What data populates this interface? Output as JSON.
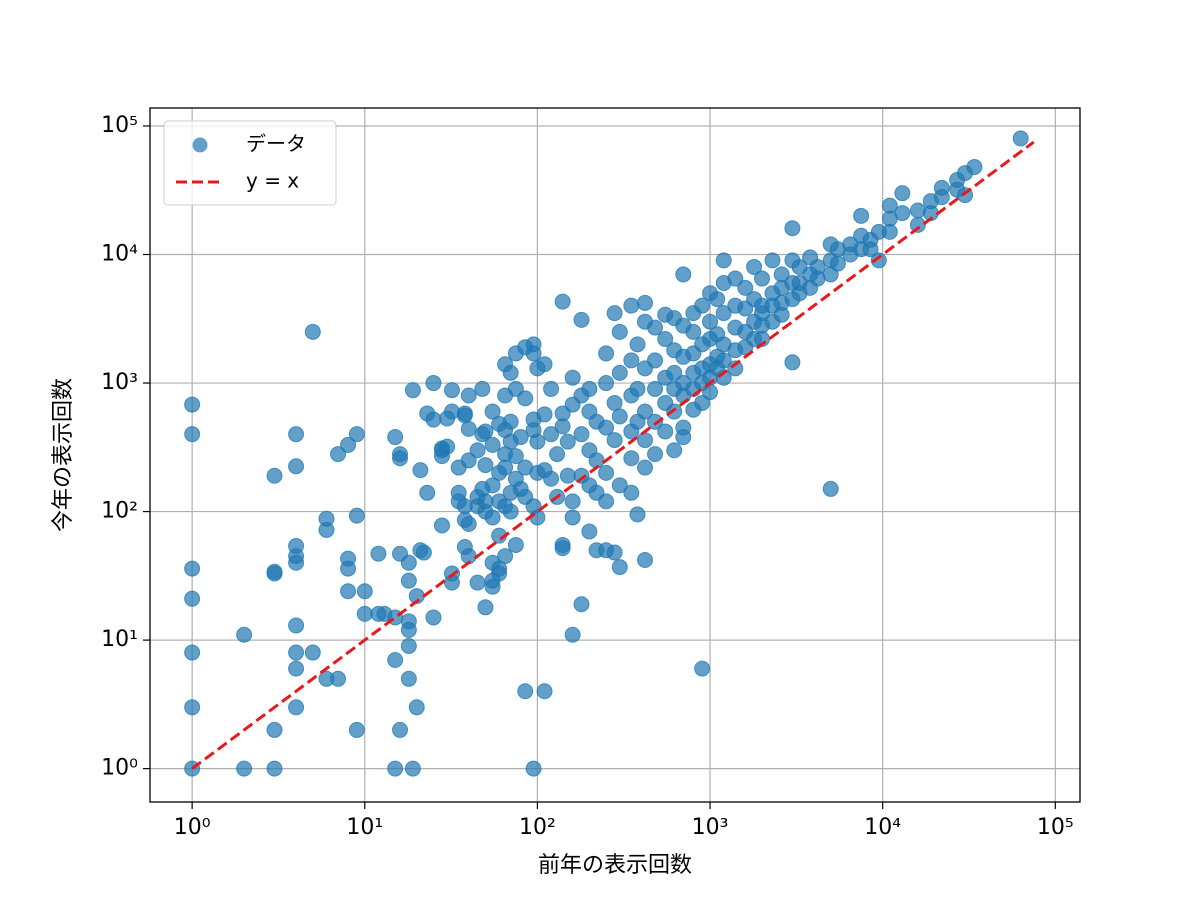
{
  "chart_data": {
    "type": "scatter",
    "xlabel": "前年の表示回数",
    "ylabel": "今年の表示回数",
    "xscale": "log",
    "yscale": "log",
    "grid": true,
    "legend": "upper left",
    "xlim": [
      0.57,
      139000
    ],
    "ylim": [
      0.55,
      138000
    ],
    "xticks": [
      {
        "value": 1,
        "label": "10⁰"
      },
      {
        "value": 10,
        "label": "10¹"
      },
      {
        "value": 100,
        "label": "10²"
      },
      {
        "value": 1000,
        "label": "10³"
      },
      {
        "value": 10000,
        "label": "10⁴"
      },
      {
        "value": 100000,
        "label": "10⁵"
      }
    ],
    "yticks": [
      {
        "value": 1,
        "label": "10⁰"
      },
      {
        "value": 10,
        "label": "10¹"
      },
      {
        "value": 100,
        "label": "10²"
      },
      {
        "value": 1000,
        "label": "10³"
      },
      {
        "value": 10000,
        "label": "10⁴"
      },
      {
        "value": 100000,
        "label": "10⁵"
      }
    ],
    "series": [
      {
        "name": "データ",
        "color": "#1f77b4",
        "kind": "points",
        "x": [
          1,
          1,
          1,
          1,
          1,
          1,
          1,
          2,
          2,
          3,
          3,
          3,
          3,
          3,
          4,
          4,
          4,
          4,
          4,
          4,
          4,
          4,
          4,
          5,
          5,
          6,
          6,
          6,
          7,
          7,
          8,
          8,
          8,
          8,
          9,
          9,
          9,
          10,
          10,
          12,
          12,
          13,
          15,
          15,
          15,
          15,
          16,
          16,
          16,
          16,
          18,
          18,
          18,
          18,
          18,
          18,
          19,
          19,
          20,
          20,
          21,
          21,
          22,
          23,
          23,
          25,
          25,
          25,
          28,
          28,
          28,
          28,
          30,
          30,
          32,
          32,
          32,
          32,
          35,
          35,
          35,
          38,
          38,
          38,
          38,
          38,
          40,
          40,
          40,
          40,
          40,
          45,
          45,
          45,
          45,
          48,
          48,
          48,
          50,
          50,
          50,
          50,
          50,
          55,
          55,
          55,
          55,
          55,
          55,
          55,
          60,
          60,
          60,
          60,
          60,
          60,
          65,
          65,
          65,
          65,
          65,
          65,
          65,
          70,
          70,
          70,
          70,
          70,
          75,
          75,
          75,
          75,
          75,
          80,
          80,
          85,
          85,
          85,
          85,
          85,
          95,
          95,
          95,
          95,
          95,
          95,
          100,
          100,
          100,
          100,
          110,
          110,
          110,
          110,
          120,
          120,
          120,
          130,
          130,
          140,
          140,
          140,
          140,
          140,
          150,
          150,
          160,
          160,
          160,
          160,
          160,
          180,
          180,
          180,
          180,
          180,
          200,
          200,
          200,
          200,
          200,
          220,
          220,
          220,
          220,
          250,
          250,
          250,
          250,
          250,
          250,
          280,
          280,
          280,
          280,
          300,
          300,
          300,
          300,
          300,
          350,
          350,
          350,
          350,
          350,
          350,
          380,
          380,
          380,
          380,
          420,
          420,
          420,
          420,
          420,
          420,
          420,
          480,
          480,
          480,
          480,
          480,
          550,
          550,
          550,
          550,
          550,
          620,
          620,
          620,
          620,
          620,
          620,
          700,
          700,
          700,
          700,
          700,
          700,
          700,
          800,
          800,
          800,
          800,
          800,
          800,
          900,
          900,
          900,
          900,
          900,
          900,
          1000,
          1000,
          1000,
          1000,
          1000,
          1000,
          1100,
          1100,
          1100,
          1100,
          1200,
          1200,
          1200,
          1200,
          1200,
          1200,
          1400,
          1400,
          1400,
          1400,
          1400,
          1600,
          1600,
          1600,
          1600,
          1800,
          1800,
          1800,
          1800,
          2000,
          2000,
          2000,
          2000,
          2000,
          2300,
          2300,
          2300,
          2300,
          2600,
          2600,
          2600,
          2600,
          3000,
          3000,
          3000,
          3000,
          3000,
          3300,
          3300,
          3300,
          3800,
          3800,
          3800,
          4200,
          4200,
          5000,
          5000,
          5000,
          5000,
          5500,
          5500,
          6500,
          6500,
          7500,
          7500,
          7500,
          8500,
          8500,
          9500,
          9500,
          11000,
          11000,
          11000,
          13000,
          13000,
          16000,
          16000,
          19000,
          19000,
          22000,
          22000,
          27000,
          27000,
          30000,
          30000,
          34000,
          63000
        ],
        "values": [
          680,
          400,
          36,
          21,
          8,
          3,
          1,
          11,
          1,
          190,
          34,
          33,
          2,
          1,
          400,
          225,
          54,
          45,
          40,
          13,
          8,
          6,
          3,
          2500,
          8,
          88,
          72,
          5,
          280,
          5,
          330,
          43,
          36,
          24,
          400,
          93,
          2,
          24,
          16,
          47,
          16,
          16,
          380,
          15,
          7,
          1,
          280,
          260,
          47,
          2,
          40,
          29,
          14,
          12,
          9,
          5,
          880,
          1,
          22,
          3,
          210,
          50,
          48,
          580,
          140,
          1000,
          520,
          15,
          310,
          300,
          270,
          78,
          320,
          530,
          880,
          600,
          28,
          33,
          220,
          140,
          120,
          580,
          560,
          110,
          86,
          53,
          800,
          440,
          250,
          80,
          45,
          300,
          130,
          110,
          28,
          900,
          400,
          150,
          420,
          230,
          120,
          100,
          18,
          600,
          330,
          160,
          90,
          40,
          29,
          26,
          480,
          200,
          120,
          65,
          36,
          33,
          1400,
          800,
          430,
          280,
          220,
          110,
          45,
          1200,
          500,
          350,
          140,
          100,
          1700,
          900,
          270,
          180,
          55,
          380,
          150,
          1900,
          760,
          220,
          130,
          4,
          2000,
          1700,
          520,
          430,
          110,
          1,
          1300,
          350,
          200,
          90,
          1400,
          570,
          210,
          4,
          900,
          400,
          180,
          280,
          130,
          4300,
          580,
          460,
          55,
          52,
          350,
          190,
          1100,
          680,
          120,
          90,
          11,
          3100,
          800,
          400,
          190,
          19,
          900,
          600,
          300,
          160,
          70,
          500,
          250,
          140,
          50,
          1700,
          1000,
          450,
          200,
          120,
          50,
          3500,
          700,
          360,
          48,
          2500,
          1200,
          550,
          160,
          37,
          4000,
          1500,
          800,
          420,
          260,
          140,
          2000,
          900,
          500,
          95,
          4200,
          3000,
          1300,
          600,
          360,
          220,
          42,
          2700,
          1500,
          900,
          500,
          280,
          3400,
          2200,
          1100,
          700,
          420,
          3200,
          1800,
          1200,
          900,
          600,
          300,
          7000,
          2800,
          1600,
          1000,
          800,
          450,
          380,
          3500,
          2500,
          1700,
          1200,
          900,
          620,
          4000,
          2000,
          1300,
          1000,
          700,
          6,
          5000,
          3000,
          2200,
          1400,
          1100,
          850,
          4500,
          2400,
          1600,
          1300,
          9000,
          6000,
          3500,
          2000,
          1500,
          1100,
          6500,
          4000,
          2700,
          1800,
          1300,
          5500,
          3800,
          2500,
          1900,
          8000,
          4500,
          3000,
          2200,
          6500,
          4000,
          3500,
          2800,
          2200,
          9000,
          5000,
          4000,
          3000,
          7000,
          5500,
          4200,
          3400,
          16000,
          9000,
          6000,
          4500,
          1450,
          8000,
          6000,
          5000,
          9500,
          7000,
          5500,
          8000,
          6500,
          12000,
          9000,
          7000,
          150,
          11000,
          8500,
          12000,
          10000,
          20000,
          14000,
          11000,
          13000,
          11000,
          15000,
          9000,
          24000,
          19000,
          15000,
          30000,
          21000,
          22000,
          17000,
          26000,
          21000,
          33000,
          28000,
          38000,
          32000,
          43000,
          29000,
          48000,
          80000
        ]
      },
      {
        "name": "y = x",
        "color": "#e8191b",
        "kind": "dashed-line",
        "x": [
          1,
          75000
        ],
        "values": [
          1,
          75000
        ]
      }
    ]
  }
}
